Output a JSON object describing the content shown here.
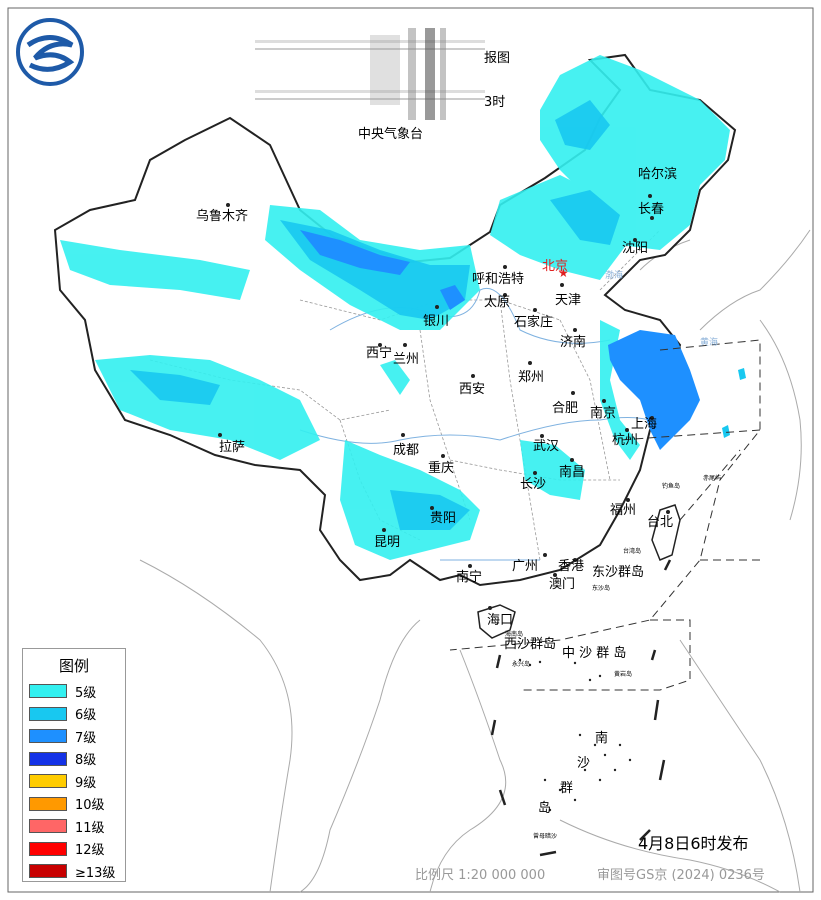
{
  "header": {
    "title_fragment": "报图",
    "time_fragment": "3时",
    "agency": "中央气象台"
  },
  "cities": {
    "beijing": "北京",
    "urumqi": "乌鲁木齐",
    "harbin": "哈尔滨",
    "changchun": "长春",
    "shenyang": "沈阳",
    "hohhot": "呼和浩特",
    "tianjin": "天津",
    "taiyuan": "太原",
    "shijiazhuang": "石家庄",
    "yinchuan": "银川",
    "jinan": "济南",
    "xining": "西宁",
    "lanzhou": "兰州",
    "zhengzhou": "郑州",
    "xian": "西安",
    "hefei": "合肥",
    "nanjing": "南京",
    "shanghai": "上海",
    "hangzhou": "杭州",
    "lhasa": "拉萨",
    "chengdu": "成都",
    "wuhan": "武汉",
    "chongqing": "重庆",
    "nanchang": "南昌",
    "changsha": "长沙",
    "fuzhou": "福州",
    "taipei": "台北",
    "guiyang": "贵阳",
    "kunming": "昆明",
    "guangzhou": "广州",
    "hongkong": "香港",
    "nanning": "南宁",
    "macau": "澳门",
    "haikou": "海口"
  },
  "islands": {
    "dongsha": "东沙群岛",
    "xisha": "西沙群岛",
    "zhongsha": "中 沙 群 岛",
    "nansha_1": "南",
    "nansha_2": "沙",
    "nansha_3": "群",
    "nansha_4": "岛",
    "hainan": "海南岛",
    "diaoyu": "钓鱼岛",
    "chiwei": "赤尾屿",
    "taiwan": "台湾岛",
    "dongsha_dao": "东沙岛",
    "yongxing": "永兴岛",
    "huangyan": "黄岩岛",
    "zengmu": "曾母暗沙"
  },
  "seas": {
    "bohai": "渤海",
    "yellow_sea": "黄海"
  },
  "legend": {
    "title": "图例",
    "items": [
      {
        "label": "5级",
        "color": "#33f0f0"
      },
      {
        "label": "6级",
        "color": "#18c8f0"
      },
      {
        "label": "7级",
        "color": "#1e90ff"
      },
      {
        "label": "8级",
        "color": "#1432e6"
      },
      {
        "label": "9级",
        "color": "#ffcc00"
      },
      {
        "label": "10级",
        "color": "#ff9900"
      },
      {
        "label": "11级",
        "color": "#ff6666"
      },
      {
        "label": "12级",
        "color": "#ff0000"
      },
      {
        "label": "≥13级",
        "color": "#c80000"
      }
    ]
  },
  "footer": {
    "issued": "4月8日6时发布",
    "scale": "比例尺 1:20 000 000",
    "approval": "审图号GS京 (2024) 0236号"
  }
}
